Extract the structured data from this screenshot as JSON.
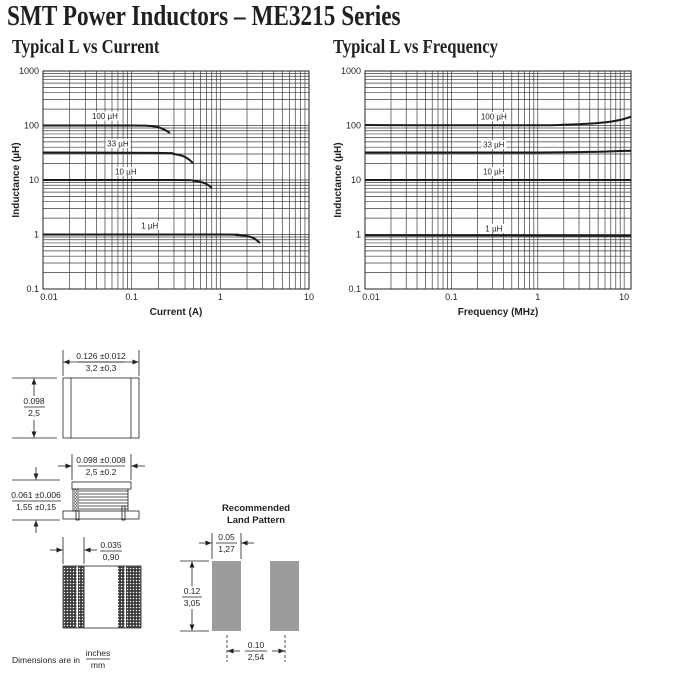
{
  "header": {
    "title": "SMT Power Inductors – ME3215 Series"
  },
  "chart_data": [
    {
      "type": "line",
      "title": "Typical L vs Current",
      "xlabel": "Current (A)",
      "ylabel": "Inductance (µH)",
      "xscale": "log",
      "yscale": "log",
      "xlim": [
        0.01,
        10
      ],
      "ylim": [
        0.1,
        1000
      ],
      "xticks": [
        0.01,
        0.1,
        1,
        10
      ],
      "xtick_labels": [
        "0.01",
        "0.1",
        "1",
        "10"
      ],
      "yticks": [
        0.1,
        1,
        10,
        100,
        1000
      ],
      "ytick_labels": [
        "0.1",
        "1",
        "10",
        "100",
        "1000"
      ],
      "grid": true,
      "legend": "inline curve labels",
      "series": [
        {
          "name": "100 µH",
          "label_pos": [
            0.05,
            140
          ],
          "points": [
            [
              0.01,
              100
            ],
            [
              0.1,
              100
            ],
            [
              0.15,
              99
            ],
            [
              0.19,
              95
            ],
            [
              0.22,
              88
            ],
            [
              0.25,
              79
            ],
            [
              0.27,
              73
            ]
          ]
        },
        {
          "name": "33 µH",
          "label_pos": [
            0.07,
            44
          ],
          "points": [
            [
              0.01,
              32
            ],
            [
              0.2,
              31.5
            ],
            [
              0.3,
              30
            ],
            [
              0.38,
              27.5
            ],
            [
              0.44,
              24
            ],
            [
              0.49,
              20.5
            ]
          ]
        },
        {
          "name": "10 µH",
          "label_pos": [
            0.086,
            13.4
          ],
          "points": [
            [
              0.01,
              10
            ],
            [
              0.3,
              10
            ],
            [
              0.5,
              9.7
            ],
            [
              0.62,
              9.1
            ],
            [
              0.72,
              8.2
            ],
            [
              0.8,
              7.1
            ]
          ]
        },
        {
          "name": "1 µH",
          "label_pos": [
            0.16,
            1.37
          ],
          "points": [
            [
              0.01,
              1
            ],
            [
              1,
              1
            ],
            [
              1.5,
              0.98
            ],
            [
              2,
              0.94
            ],
            [
              2.4,
              0.85
            ],
            [
              2.8,
              0.7
            ]
          ]
        }
      ]
    },
    {
      "type": "line",
      "title": "Typical L vs Frequency",
      "xlabel": "Frequency (MHz)",
      "ylabel": "Inductance (µH)",
      "xscale": "log",
      "yscale": "log",
      "xlim": [
        0.01,
        12
      ],
      "ylim": [
        0.1,
        1000
      ],
      "xticks": [
        0.01,
        0.1,
        1,
        10
      ],
      "xtick_labels": [
        "0.01",
        "0.1",
        "1",
        "10"
      ],
      "yticks": [
        0.1,
        1,
        10,
        100,
        1000
      ],
      "ytick_labels": [
        "0.1",
        "1",
        "10",
        "100",
        "1000"
      ],
      "grid": true,
      "legend": "inline curve labels",
      "series": [
        {
          "name": "100 µH",
          "label_pos": [
            0.31,
            137
          ],
          "points": [
            [
              0.01,
              102
            ],
            [
              0.1,
              101
            ],
            [
              1,
              101
            ],
            [
              2,
              103
            ],
            [
              4,
              108
            ],
            [
              7,
              118
            ],
            [
              10,
              132
            ],
            [
              12,
              145
            ]
          ]
        },
        {
          "name": "33 µH",
          "label_pos": [
            0.31,
            42
          ],
          "points": [
            [
              0.01,
              32
            ],
            [
              1,
              32
            ],
            [
              5,
              33
            ],
            [
              12,
              34.5
            ]
          ]
        },
        {
          "name": "10 µH",
          "label_pos": [
            0.31,
            13.4
          ],
          "points": [
            [
              0.01,
              10
            ],
            [
              1,
              10
            ],
            [
              12,
              10
            ]
          ]
        },
        {
          "name": "1 µH",
          "label_pos": [
            0.31,
            1.21
          ],
          "points": [
            [
              0.01,
              0.97
            ],
            [
              1,
              0.96
            ],
            [
              12,
              0.95
            ]
          ]
        }
      ]
    }
  ],
  "drawings": {
    "top_view": {
      "width_in": "0.126 ±0.012",
      "width_mm": "3,2 ±0,3",
      "height_in": "0.098",
      "height_mm": "2,5"
    },
    "side_view": {
      "width_in": "0.098 ±0.008",
      "width_mm": "2,5 ±0.2",
      "height_in": "0.061 ±0.006",
      "height_mm": "1,55 ±0,15"
    },
    "bottom_view": {
      "terminal_in": "0.035",
      "terminal_mm": "0,90"
    },
    "units_note": {
      "label": "Dimensions are in",
      "numerator": "inches",
      "denominator": "mm"
    },
    "land_pattern": {
      "title_line1": "Recommended",
      "title_line2": "Land Pattern",
      "pad_width_in": "0.05",
      "pad_width_mm": "1,27",
      "pad_length_in": "0.12",
      "pad_length_mm": "3,05",
      "pitch_in": "0.10",
      "pitch_mm": "2,54"
    },
    "colors": {
      "pad_fill": "#9c9c9c",
      "line": "#231f20",
      "hatch": "#3a3a3a"
    }
  }
}
